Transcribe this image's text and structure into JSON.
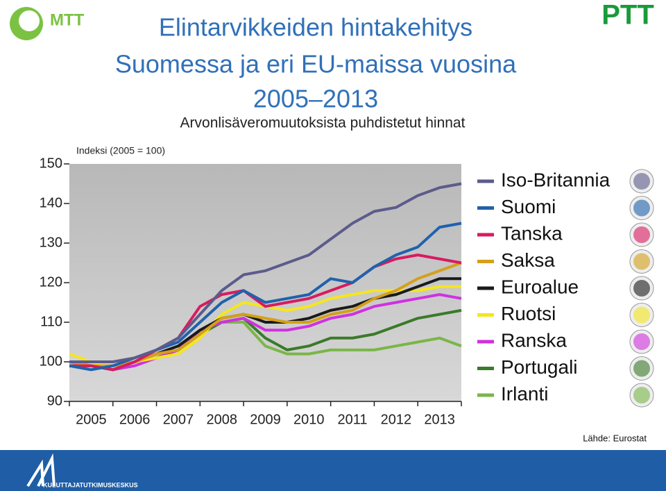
{
  "header": {
    "logo_left": "MTT",
    "logo_right": "PTT",
    "footer_logo": "KULUTTAJATUTKIMUSKESKUS"
  },
  "chart_data": {
    "type": "line",
    "title": [
      "Elintarvikkeiden hintakehitys",
      "Suomessa ja eri EU-maissa vuosina",
      "2005–2013"
    ],
    "subtitle": "Arvonlisäveromuutoksista puhdistetut hinnat",
    "y_label": "Indeksi (2005 = 100)",
    "source": "Lähde: Eurostat",
    "categories": [
      "2005",
      "2006",
      "2007",
      "2008",
      "2009",
      "2010",
      "2011",
      "2012",
      "2013"
    ],
    "x": [
      2005,
      2005.5,
      2006,
      2006.5,
      2007,
      2007.5,
      2008,
      2008.5,
      2009,
      2009.5,
      2010,
      2010.5,
      2011,
      2011.5,
      2012,
      2012.5,
      2013,
      2013.5,
      2014
    ],
    "xlim": [
      2005,
      2014
    ],
    "xticks": [
      2005,
      2006,
      2007,
      2008,
      2009,
      2010,
      2011,
      2012,
      2013,
      2014
    ],
    "ylim": [
      90,
      150
    ],
    "yticks": [
      90,
      100,
      110,
      120,
      130,
      140,
      150
    ],
    "grid": false,
    "series": [
      {
        "name": "Iso-Britannia",
        "color": "#5b5b8c",
        "values": [
          100,
          100,
          100,
          101,
          103,
          106,
          112,
          118,
          122,
          123,
          125,
          127,
          131,
          135,
          138,
          139,
          142,
          144,
          145
        ]
      },
      {
        "name": "Suomi",
        "color": "#1f62ad",
        "values": [
          99,
          98,
          99,
          101,
          103,
          105,
          110,
          115,
          118,
          115,
          116,
          117,
          121,
          120,
          124,
          127,
          129,
          134,
          135
        ]
      },
      {
        "name": "Tanska",
        "color": "#d81b60",
        "values": [
          99,
          99,
          98,
          100,
          103,
          106,
          114,
          117,
          118,
          114,
          115,
          116,
          118,
          120,
          124,
          126,
          127,
          126,
          125
        ]
      },
      {
        "name": "Saksa",
        "color": "#d4a017",
        "values": [
          100,
          99,
          99,
          100,
          102,
          103,
          107,
          111,
          112,
          111,
          110,
          110,
          112,
          113,
          116,
          118,
          121,
          123,
          125
        ]
      },
      {
        "name": "Euroalue",
        "color": "#1a1a1a",
        "values": [
          99,
          99,
          98,
          100,
          102,
          104,
          108,
          111,
          112,
          110,
          110,
          111,
          113,
          114,
          116,
          117,
          119,
          121,
          121
        ]
      },
      {
        "name": "Ruotsi",
        "color": "#f5e61e",
        "values": [
          102,
          100,
          98,
          100,
          101,
          102,
          106,
          112,
          115,
          114,
          113,
          114,
          116,
          117,
          118,
          118,
          118,
          119,
          119
        ]
      },
      {
        "name": "Ranska",
        "color": "#d030e0",
        "values": [
          100,
          99,
          98,
          99,
          101,
          103,
          108,
          110,
          111,
          108,
          108,
          109,
          111,
          112,
          114,
          115,
          116,
          117,
          116
        ]
      },
      {
        "name": "Portugali",
        "color": "#3a7a2a",
        "values": [
          100,
          99,
          98,
          100,
          101,
          103,
          107,
          110,
          111,
          106,
          103,
          104,
          106,
          106,
          107,
          109,
          111,
          112,
          113
        ]
      },
      {
        "name": "Irlanti",
        "color": "#7ab648",
        "values": [
          100,
          99,
          98,
          100,
          101,
          103,
          107,
          110,
          110,
          104,
          102,
          102,
          103,
          103,
          103,
          104,
          105,
          106,
          104
        ]
      }
    ]
  }
}
